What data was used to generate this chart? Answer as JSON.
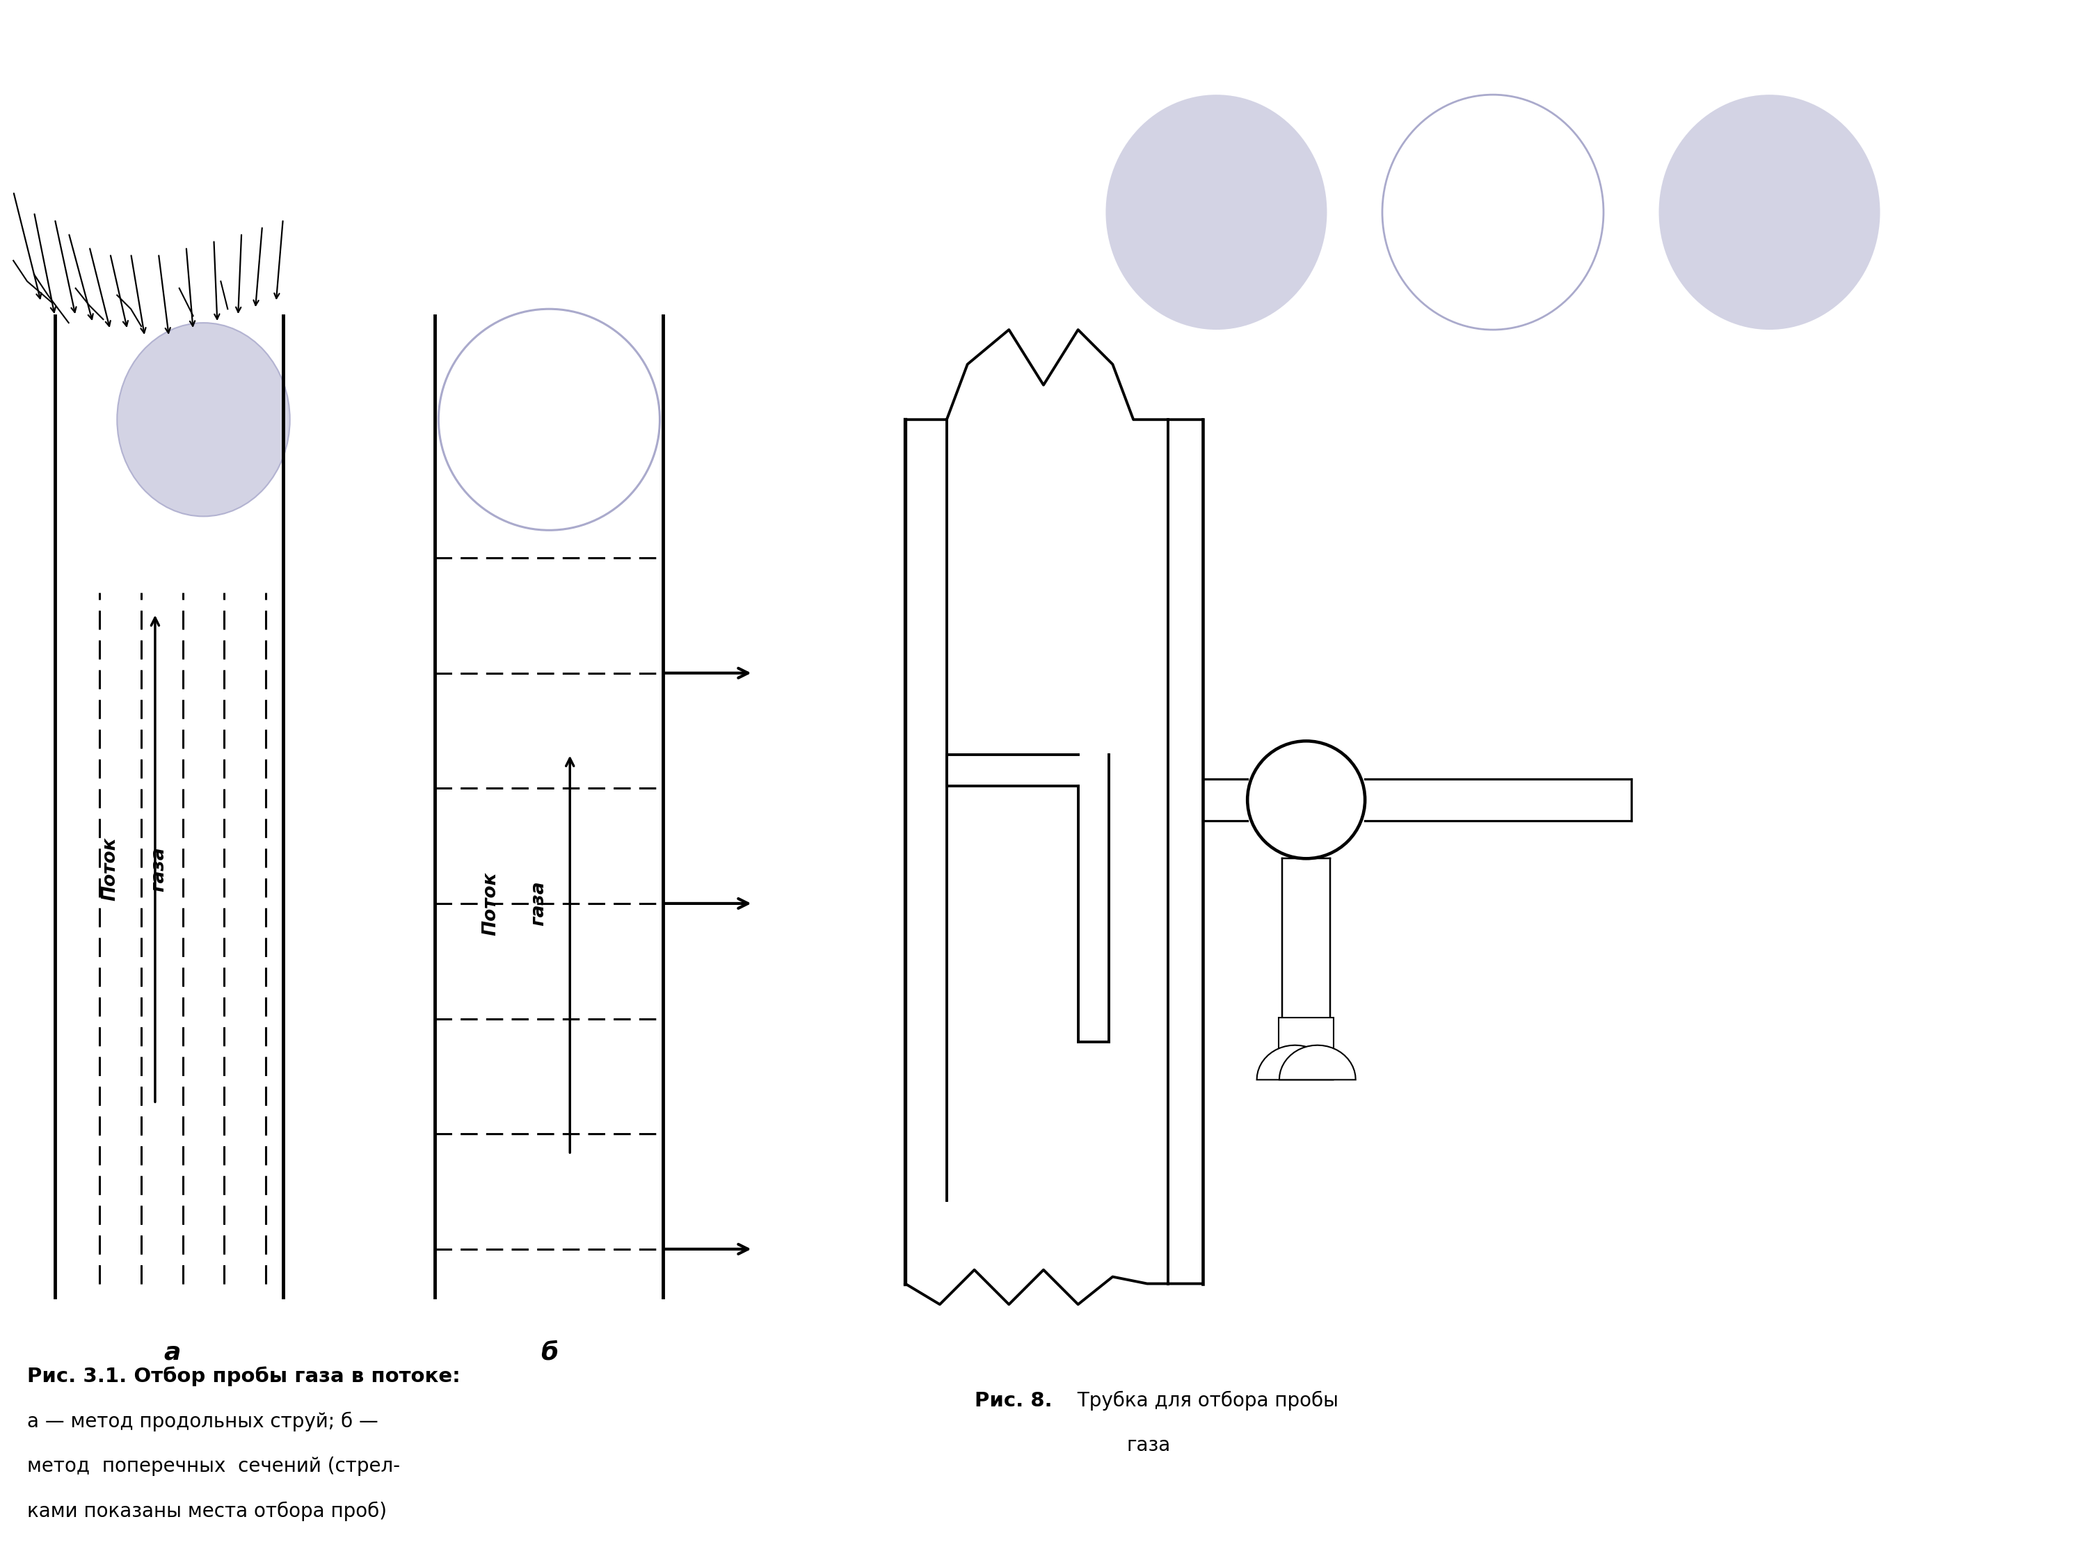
{
  "bg_color": "#ffffff",
  "light_purple": "#cccce0",
  "circle_edge": "#aaaacc",
  "lw_wall": 3.5,
  "lw_dash": 2.2,
  "lw_arrow": 2.5,
  "lw_device": 2.8,
  "label_a": "a",
  "label_b": "б",
  "caption1_bold": "Рис. 3.1. Отбор пробы газа в потоке:",
  "caption1_line2": "а — метод продольных струй; б —",
  "caption1_line3": "метод  поперечных  сечений (стрел-",
  "caption1_line4": "ками показаны места отбора проб)",
  "caption2_bold": "Рис. 8.",
  "caption2_rest": " Трубка для отбора пробы",
  "caption2_line2": "газа"
}
